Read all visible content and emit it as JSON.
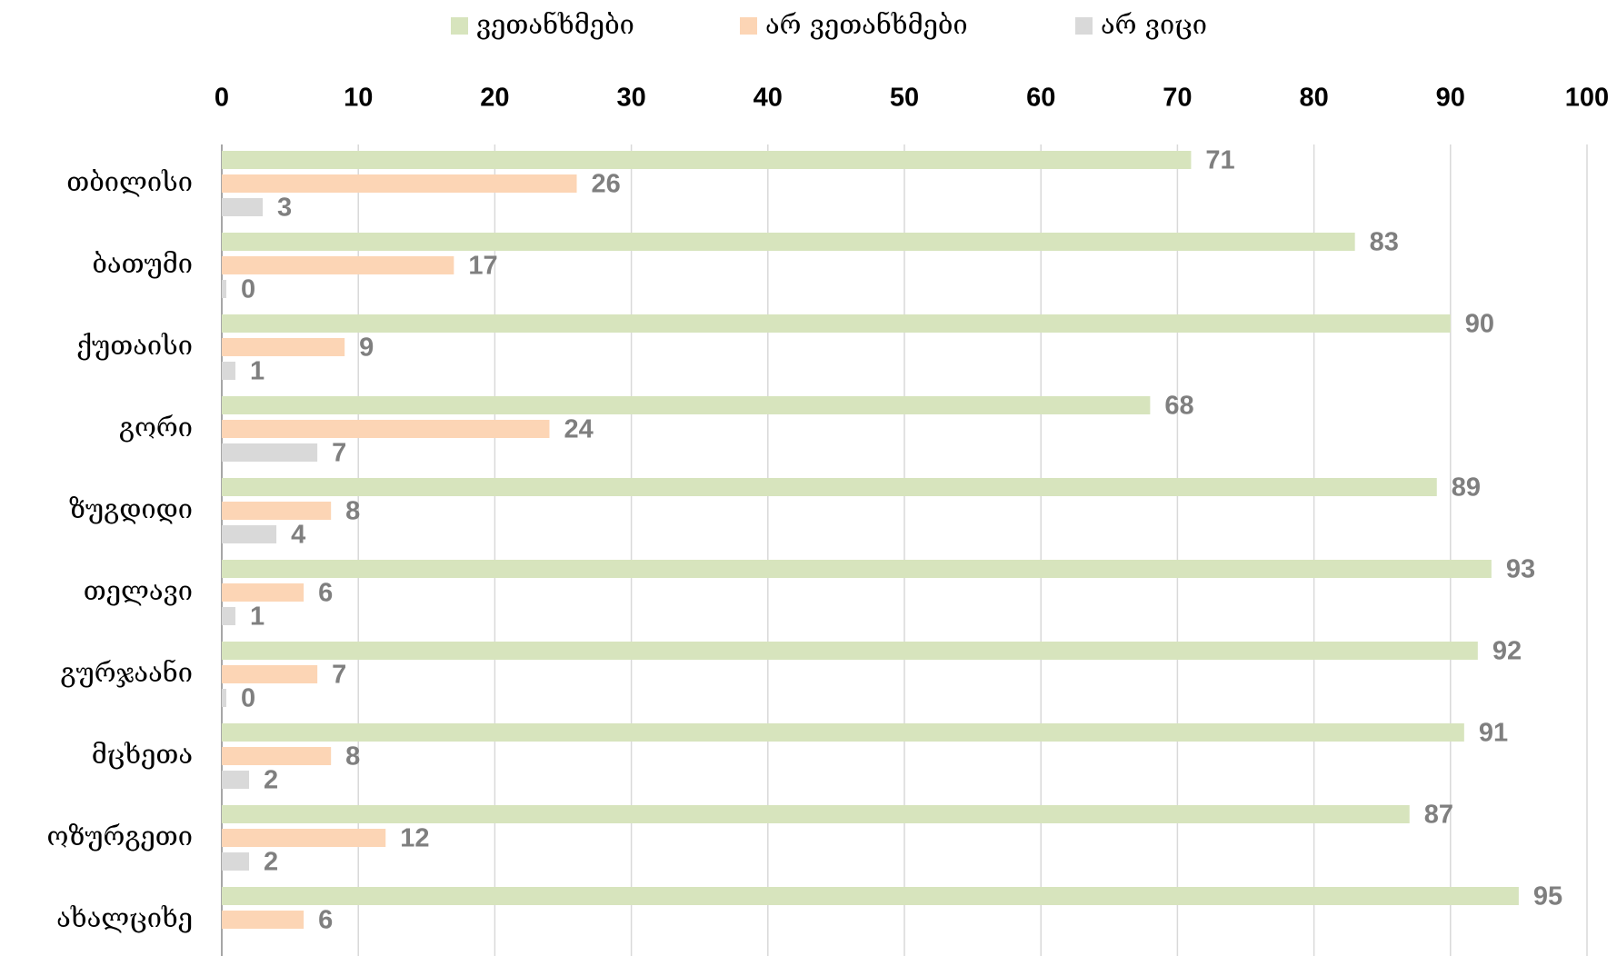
{
  "chart_data": {
    "type": "bar",
    "orientation": "horizontal",
    "categories": [
      "თბილისი",
      "ბათუმი",
      "ქუთაისი",
      "გორი",
      "ზუგდიდი",
      "თელავი",
      "გურჯაანი",
      "მცხეთა",
      "ოზურგეთი",
      "ახალციხე"
    ],
    "series": [
      {
        "name": "ვეთანხმები",
        "color": "#d7e4bd",
        "values": [
          71,
          83,
          90,
          68,
          89,
          93,
          92,
          91,
          87,
          95
        ]
      },
      {
        "name": "არ ვეთანხმები",
        "color": "#fcd5b5",
        "values": [
          26,
          17,
          9,
          24,
          8,
          6,
          7,
          8,
          12,
          6
        ]
      },
      {
        "name": "არ ვიცი",
        "color": "#d9d9d9",
        "values": [
          3,
          0,
          1,
          7,
          4,
          1,
          0,
          2,
          2,
          null
        ]
      }
    ],
    "xlim": [
      0,
      100
    ],
    "xticks": [
      0,
      10,
      20,
      30,
      40,
      50,
      60,
      70,
      80,
      90,
      100
    ],
    "grid": true,
    "legend": "top"
  }
}
